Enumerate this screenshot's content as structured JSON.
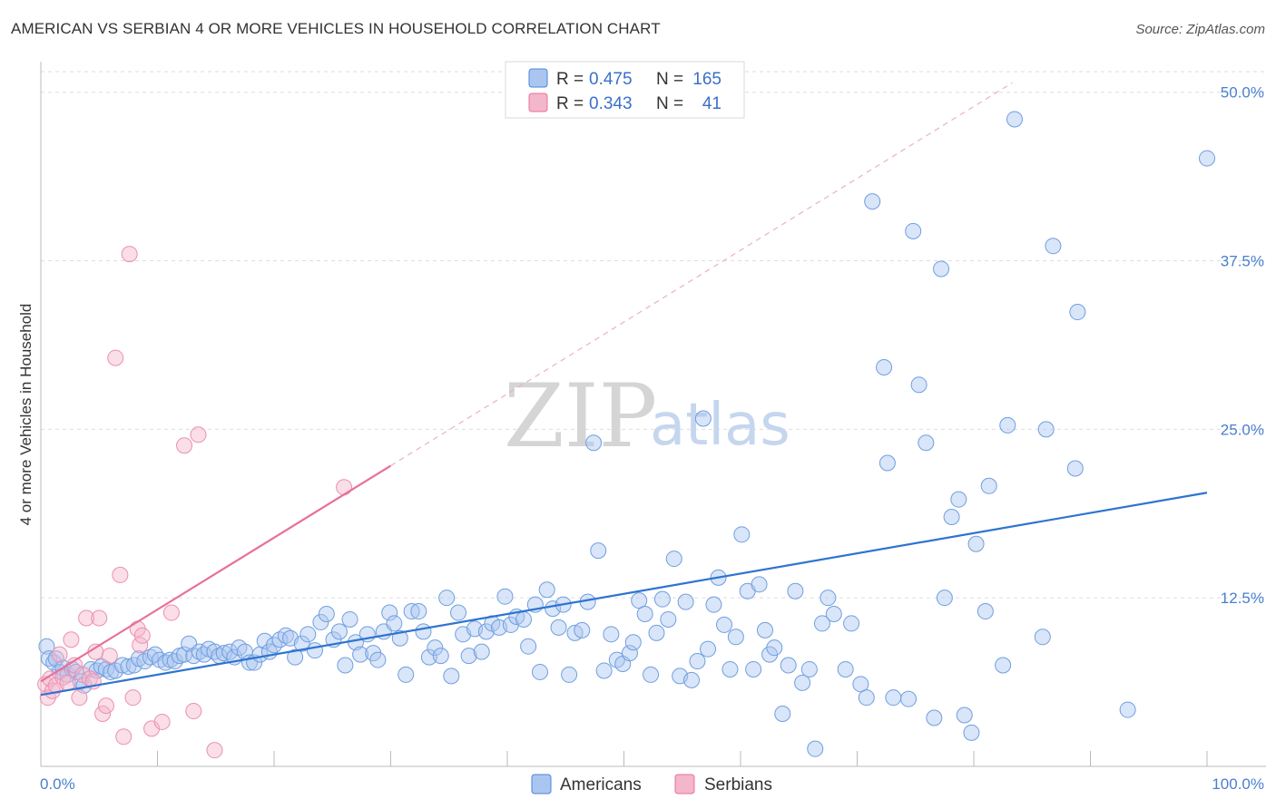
{
  "title": "AMERICAN VS SERBIAN 4 OR MORE VEHICLES IN HOUSEHOLD CORRELATION CHART",
  "source": "Source: ZipAtlas.com",
  "colors": {
    "americans": "#4a86d8",
    "americans_fill": "#aac6f0",
    "serbians": "#e8709a",
    "serbians_fill": "#f4b6cb",
    "axis_text": "#4a7fcf"
  },
  "legend": {
    "rows": [
      {
        "r_label": "R = ",
        "r_value": "0.475",
        "n_label": "N = ",
        "n_value": "165"
      },
      {
        "r_label": "R = ",
        "r_value": "0.343",
        "n_label": "N = ",
        "n_value": "41"
      }
    ]
  },
  "bottom_legend": {
    "americans": "Americans",
    "serbians": "Serbians"
  },
  "watermark": {
    "zip": "ZIP",
    "atlas": "atlas"
  },
  "chart_data": {
    "type": "scatter",
    "title": "AMERICAN VS SERBIAN 4 OR MORE VEHICLES IN HOUSEHOLD CORRELATION CHART",
    "xlabel": "",
    "ylabel": "4 or more Vehicles in Household",
    "xlim": [
      0,
      100
    ],
    "ylim": [
      0,
      52
    ],
    "x_tick_labels": [
      "0.0%",
      "100.0%"
    ],
    "y_ticks": [
      12.5,
      25.0,
      37.5,
      50.0
    ],
    "y_tick_labels": [
      "12.5%",
      "25.0%",
      "37.5%",
      "50.0%"
    ],
    "grid": true,
    "legend_position": "top-center",
    "series": [
      {
        "name": "Americans",
        "color": "#4a86d8",
        "trend": {
          "x": [
            0,
            100
          ],
          "y": [
            5.3,
            20.3
          ]
        },
        "points": [
          [
            0.5,
            8.9
          ],
          [
            0.7,
            8.0
          ],
          [
            1.1,
            7.7
          ],
          [
            1.3,
            8.0
          ],
          [
            1.6,
            7.0
          ],
          [
            1.9,
            7.3
          ],
          [
            2.3,
            6.8
          ],
          [
            2.7,
            7.2
          ],
          [
            3.0,
            7.0
          ],
          [
            3.4,
            6.3
          ],
          [
            3.7,
            6.0
          ],
          [
            4.3,
            7.2
          ],
          [
            4.8,
            7.1
          ],
          [
            5.2,
            7.4
          ],
          [
            5.6,
            7.2
          ],
          [
            6.0,
            7.0
          ],
          [
            6.4,
            7.1
          ],
          [
            7.0,
            7.5
          ],
          [
            7.5,
            7.4
          ],
          [
            8.0,
            7.5
          ],
          [
            8.4,
            8.0
          ],
          [
            8.9,
            7.8
          ],
          [
            9.4,
            8.1
          ],
          [
            9.8,
            8.3
          ],
          [
            10.2,
            7.9
          ],
          [
            10.7,
            7.7
          ],
          [
            11.1,
            7.9
          ],
          [
            11.5,
            7.8
          ],
          [
            11.9,
            8.2
          ],
          [
            12.3,
            8.3
          ],
          [
            12.7,
            9.1
          ],
          [
            13.1,
            8.2
          ],
          [
            13.6,
            8.5
          ],
          [
            14.0,
            8.3
          ],
          [
            14.4,
            8.7
          ],
          [
            14.9,
            8.5
          ],
          [
            15.3,
            8.2
          ],
          [
            15.7,
            8.4
          ],
          [
            16.2,
            8.5
          ],
          [
            16.6,
            8.1
          ],
          [
            17.0,
            8.8
          ],
          [
            17.5,
            8.5
          ],
          [
            17.9,
            7.7
          ],
          [
            18.3,
            7.7
          ],
          [
            18.8,
            8.3
          ],
          [
            19.2,
            9.3
          ],
          [
            19.6,
            8.5
          ],
          [
            20.0,
            9.0
          ],
          [
            20.5,
            9.4
          ],
          [
            21.0,
            9.7
          ],
          [
            21.4,
            9.5
          ],
          [
            21.8,
            8.1
          ],
          [
            22.4,
            9.1
          ],
          [
            22.9,
            9.8
          ],
          [
            23.5,
            8.6
          ],
          [
            24.0,
            10.7
          ],
          [
            24.5,
            11.3
          ],
          [
            25.1,
            9.4
          ],
          [
            25.6,
            10.0
          ],
          [
            26.1,
            7.5
          ],
          [
            26.5,
            10.9
          ],
          [
            27.0,
            9.2
          ],
          [
            27.4,
            8.3
          ],
          [
            28.0,
            9.8
          ],
          [
            28.5,
            8.4
          ],
          [
            28.9,
            7.9
          ],
          [
            29.4,
            10.0
          ],
          [
            29.9,
            11.4
          ],
          [
            30.3,
            10.6
          ],
          [
            30.8,
            9.5
          ],
          [
            31.3,
            6.8
          ],
          [
            31.8,
            11.5
          ],
          [
            32.4,
            11.5
          ],
          [
            32.8,
            10.0
          ],
          [
            33.3,
            8.1
          ],
          [
            33.8,
            8.8
          ],
          [
            34.3,
            8.2
          ],
          [
            34.8,
            12.5
          ],
          [
            35.2,
            6.7
          ],
          [
            35.8,
            11.4
          ],
          [
            36.2,
            9.8
          ],
          [
            36.7,
            8.2
          ],
          [
            37.2,
            10.2
          ],
          [
            37.8,
            8.5
          ],
          [
            38.2,
            10.0
          ],
          [
            38.7,
            10.6
          ],
          [
            39.3,
            10.3
          ],
          [
            39.8,
            12.6
          ],
          [
            40.3,
            10.5
          ],
          [
            40.8,
            11.1
          ],
          [
            41.4,
            10.9
          ],
          [
            41.8,
            8.9
          ],
          [
            42.4,
            12.0
          ],
          [
            42.8,
            7.0
          ],
          [
            43.4,
            13.1
          ],
          [
            43.9,
            11.7
          ],
          [
            44.4,
            10.3
          ],
          [
            44.8,
            12.0
          ],
          [
            45.3,
            6.8
          ],
          [
            45.8,
            9.9
          ],
          [
            46.4,
            10.1
          ],
          [
            46.9,
            12.2
          ],
          [
            47.4,
            24.0
          ],
          [
            47.8,
            16.0
          ],
          [
            48.3,
            7.1
          ],
          [
            48.9,
            9.8
          ],
          [
            49.4,
            7.9
          ],
          [
            49.9,
            7.6
          ],
          [
            50.5,
            8.4
          ],
          [
            50.8,
            9.2
          ],
          [
            51.3,
            12.3
          ],
          [
            51.8,
            11.3
          ],
          [
            52.3,
            6.8
          ],
          [
            52.8,
            9.9
          ],
          [
            53.3,
            12.4
          ],
          [
            53.8,
            10.9
          ],
          [
            54.3,
            15.4
          ],
          [
            54.8,
            6.7
          ],
          [
            55.3,
            12.2
          ],
          [
            55.8,
            6.4
          ],
          [
            56.3,
            7.8
          ],
          [
            56.8,
            25.8
          ],
          [
            57.2,
            8.7
          ],
          [
            57.7,
            12.0
          ],
          [
            58.1,
            14.0
          ],
          [
            58.6,
            10.5
          ],
          [
            59.1,
            7.2
          ],
          [
            59.6,
            9.6
          ],
          [
            60.1,
            17.2
          ],
          [
            60.6,
            13.0
          ],
          [
            61.1,
            7.2
          ],
          [
            61.6,
            13.5
          ],
          [
            62.1,
            10.1
          ],
          [
            62.5,
            8.3
          ],
          [
            62.9,
            8.8
          ],
          [
            63.6,
            3.9
          ],
          [
            64.1,
            7.5
          ],
          [
            64.7,
            13.0
          ],
          [
            65.3,
            6.2
          ],
          [
            65.9,
            7.2
          ],
          [
            66.4,
            1.3
          ],
          [
            67.0,
            10.6
          ],
          [
            67.5,
            12.5
          ],
          [
            68.0,
            11.3
          ],
          [
            69.0,
            7.2
          ],
          [
            69.5,
            10.6
          ],
          [
            70.3,
            6.1
          ],
          [
            70.8,
            5.1
          ],
          [
            71.3,
            41.9
          ],
          [
            72.3,
            29.6
          ],
          [
            72.6,
            22.5
          ],
          [
            73.1,
            5.1
          ],
          [
            74.4,
            5.0
          ],
          [
            74.8,
            39.7
          ],
          [
            75.3,
            28.3
          ],
          [
            75.9,
            24.0
          ],
          [
            76.6,
            3.6
          ],
          [
            77.2,
            36.9
          ],
          [
            77.5,
            12.5
          ],
          [
            78.1,
            18.5
          ],
          [
            78.7,
            19.8
          ],
          [
            79.2,
            3.8
          ],
          [
            79.8,
            2.5
          ],
          [
            80.2,
            16.5
          ],
          [
            81.0,
            11.5
          ],
          [
            81.3,
            20.8
          ],
          [
            82.5,
            7.5
          ],
          [
            82.9,
            25.3
          ],
          [
            83.5,
            48.0
          ],
          [
            85.9,
            9.6
          ],
          [
            86.2,
            25.0
          ],
          [
            86.8,
            38.6
          ],
          [
            88.7,
            22.1
          ],
          [
            88.9,
            33.7
          ],
          [
            93.2,
            4.2
          ],
          [
            100.0,
            45.1
          ]
        ]
      },
      {
        "name": "Serbians",
        "color": "#e8709a",
        "trend": {
          "x": [
            0,
            30
          ],
          "y": [
            6.3,
            22.3
          ]
        },
        "trend_extension": {
          "x": [
            30,
            83.3
          ],
          "y": [
            22.3,
            50.7
          ]
        },
        "points": [
          [
            0.4,
            6.1
          ],
          [
            0.6,
            5.1
          ],
          [
            0.8,
            6.5
          ],
          [
            1.0,
            5.6
          ],
          [
            1.3,
            6.0
          ],
          [
            1.6,
            8.3
          ],
          [
            1.9,
            6.6
          ],
          [
            2.3,
            6.2
          ],
          [
            2.6,
            9.4
          ],
          [
            2.9,
            7.5
          ],
          [
            3.3,
            5.1
          ],
          [
            3.6,
            6.8
          ],
          [
            3.9,
            11.0
          ],
          [
            4.2,
            6.5
          ],
          [
            4.5,
            6.3
          ],
          [
            4.7,
            8.5
          ],
          [
            5.0,
            11.0
          ],
          [
            5.3,
            3.9
          ],
          [
            5.6,
            4.5
          ],
          [
            5.9,
            8.2
          ],
          [
            6.4,
            30.3
          ],
          [
            6.8,
            14.2
          ],
          [
            7.1,
            2.2
          ],
          [
            7.6,
            38.0
          ],
          [
            7.9,
            5.1
          ],
          [
            8.3,
            10.2
          ],
          [
            8.5,
            9.0
          ],
          [
            8.7,
            9.7
          ],
          [
            9.5,
            2.8
          ],
          [
            10.4,
            3.3
          ],
          [
            11.2,
            11.4
          ],
          [
            12.3,
            23.8
          ],
          [
            13.1,
            4.1
          ],
          [
            13.5,
            24.6
          ],
          [
            14.9,
            1.2
          ],
          [
            26.0,
            20.7
          ]
        ]
      }
    ]
  }
}
